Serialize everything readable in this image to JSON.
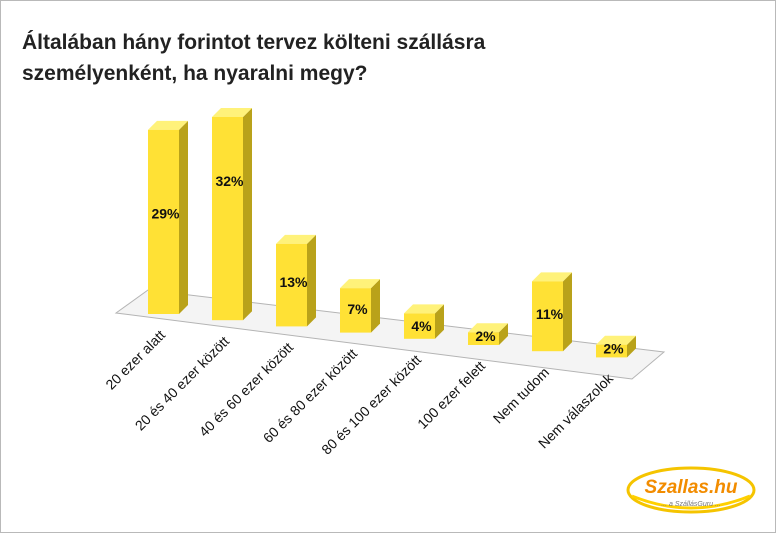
{
  "title": "Általában hány forintot tervez költeni szállásra személyenként, ha nyaralni megy?",
  "logo": {
    "name": "Szallas.hu",
    "tagline": "... a SzállásGuru ..."
  },
  "colors": {
    "bar_front": "#ffe135",
    "bar_side": "#b9a21a",
    "bar_top": "#fff27a",
    "floor_fill": "#f4f4f4",
    "floor_stroke": "#b4b4b4",
    "logo_orange": "#f28c00"
  },
  "chart_data": {
    "type": "bar",
    "title": "Általában hány forintot tervez költeni szállásra személyenként, ha nyaralni megy?",
    "categories": [
      "20 ezer alatt",
      "20 és 40 ezer között",
      "40 és 60 ezer között",
      "60 és 80 ezer között",
      "80 és 100 ezer között",
      "100 ezer felett",
      "Nem tudom",
      "Nem válaszolok"
    ],
    "values": [
      29,
      32,
      13,
      7,
      4,
      2,
      11,
      2
    ],
    "data_labels": [
      "29%",
      "32%",
      "13%",
      "7%",
      "4%",
      "2%",
      "11%",
      "2%"
    ],
    "unit": "%",
    "grid": false,
    "legend": "none",
    "style": "3d"
  }
}
